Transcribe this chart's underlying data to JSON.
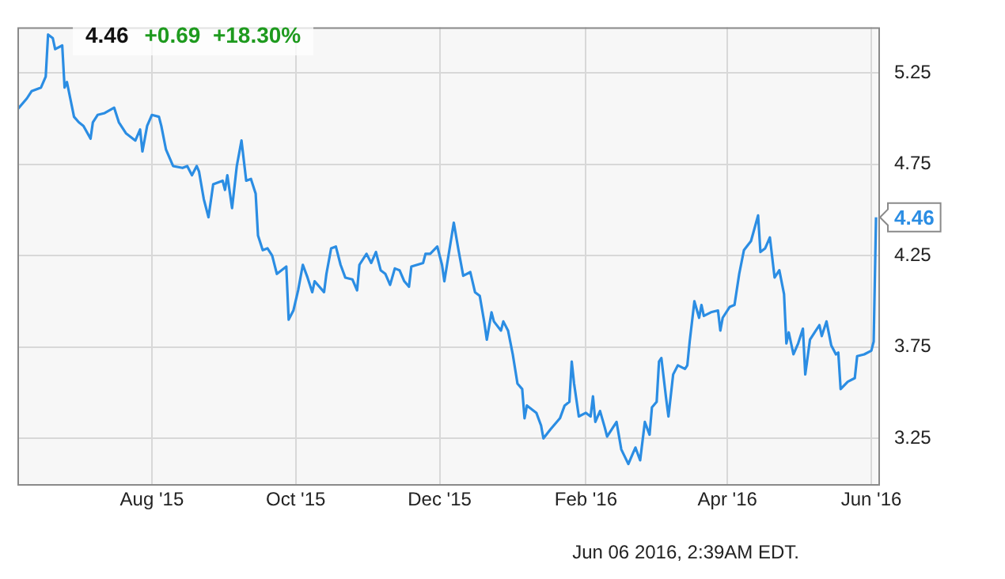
{
  "chart_data": {
    "type": "line",
    "title": "4.46",
    "subtitle": "+0.69  +18.30%",
    "annotations": [
      {
        "text": "4.46",
        "x": "2016-06-03",
        "y": 4.46
      },
      "Jun 06 2016, 2:39AM EDT."
    ],
    "x": [
      "2015-06-05",
      "2015-06-09",
      "2015-06-11",
      "2015-06-15",
      "2015-06-17",
      "2015-06-18",
      "2015-06-20",
      "2015-06-21",
      "2015-06-24",
      "2015-06-25",
      "2015-06-26",
      "2015-06-29",
      "2015-07-01",
      "2015-07-03",
      "2015-07-06",
      "2015-07-07",
      "2015-07-09",
      "2015-07-12",
      "2015-07-16",
      "2015-07-18",
      "2015-07-21",
      "2015-07-25",
      "2015-07-27",
      "2015-07-28",
      "2015-07-30",
      "2015-08-01",
      "2015-08-04",
      "2015-08-05",
      "2015-08-07",
      "2015-08-10",
      "2015-08-14",
      "2015-08-16",
      "2015-08-18",
      "2015-08-20",
      "2015-08-21",
      "2015-08-23",
      "2015-08-25",
      "2015-08-27",
      "2015-08-31",
      "2015-09-01",
      "2015-09-02",
      "2015-09-04",
      "2015-09-06",
      "2015-09-08",
      "2015-09-10",
      "2015-09-12",
      "2015-09-14",
      "2015-09-15",
      "2015-09-17",
      "2015-09-19",
      "2015-09-21",
      "2015-09-23",
      "2015-09-27",
      "2015-09-28",
      "2015-09-30",
      "2015-10-02",
      "2015-10-04",
      "2015-10-06",
      "2015-10-08",
      "2015-10-09",
      "2015-10-13",
      "2015-10-14",
      "2015-10-16",
      "2015-10-18",
      "2015-10-20",
      "2015-10-22",
      "2015-10-25",
      "2015-10-27",
      "2015-10-28",
      "2015-10-31",
      "2015-11-02",
      "2015-11-04",
      "2015-11-06",
      "2015-11-08",
      "2015-11-10",
      "2015-11-12",
      "2015-11-14",
      "2015-11-16",
      "2015-11-18",
      "2015-11-19",
      "2015-11-24",
      "2015-11-25",
      "2015-11-27",
      "2015-11-30",
      "2015-12-02",
      "2015-12-03",
      "2015-12-07",
      "2015-12-09",
      "2015-12-11",
      "2015-12-14",
      "2015-12-16",
      "2015-12-18",
      "2015-12-20",
      "2015-12-21",
      "2015-12-23",
      "2015-12-24",
      "2015-12-27",
      "2015-12-28",
      "2015-12-30",
      "2016-01-01",
      "2016-01-03",
      "2016-01-05",
      "2016-01-06",
      "2016-01-07",
      "2016-01-11",
      "2016-01-13",
      "2016-01-14",
      "2016-01-17",
      "2016-01-21",
      "2016-01-23",
      "2016-01-25",
      "2016-01-26",
      "2016-01-27",
      "2016-01-29",
      "2016-02-01",
      "2016-02-03",
      "2016-02-04",
      "2016-02-05",
      "2016-02-07",
      "2016-02-09",
      "2016-02-10",
      "2016-02-12",
      "2016-02-14",
      "2016-02-16",
      "2016-02-19",
      "2016-02-21",
      "2016-02-22",
      "2016-02-24",
      "2016-02-26",
      "2016-02-28",
      "2016-02-29",
      "2016-03-02",
      "2016-03-03",
      "2016-03-04",
      "2016-03-06",
      "2016-03-07",
      "2016-03-09",
      "2016-03-11",
      "2016-03-14",
      "2016-03-15",
      "2016-03-16",
      "2016-03-18",
      "2016-03-20",
      "2016-03-21",
      "2016-03-22",
      "2016-03-25",
      "2016-03-28",
      "2016-03-29",
      "2016-03-30",
      "2016-04-02",
      "2016-04-04",
      "2016-04-06",
      "2016-04-08",
      "2016-04-11",
      "2016-04-14",
      "2016-04-15",
      "2016-04-17",
      "2016-04-19",
      "2016-04-21",
      "2016-04-23",
      "2016-04-25",
      "2016-04-26",
      "2016-04-27",
      "2016-04-29",
      "2016-05-01",
      "2016-05-03",
      "2016-05-04",
      "2016-05-06",
      "2016-05-08",
      "2016-05-10",
      "2016-05-11",
      "2016-05-13",
      "2016-05-15",
      "2016-05-17",
      "2016-05-18",
      "2016-05-19",
      "2016-05-22",
      "2016-05-25",
      "2016-05-26",
      "2016-05-29",
      "2016-06-01",
      "2016-06-02",
      "2016-06-03"
    ],
    "series": [
      {
        "color": "#2b8de3",
        "values": [
          5.05,
          5.11,
          5.15,
          5.17,
          5.23,
          5.46,
          5.44,
          5.38,
          5.4,
          5.17,
          5.2,
          5.01,
          4.98,
          4.96,
          4.89,
          4.98,
          5.02,
          5.03,
          5.06,
          4.98,
          4.92,
          4.88,
          4.94,
          4.82,
          4.96,
          5.02,
          5.01,
          4.96,
          4.83,
          4.74,
          4.73,
          4.74,
          4.69,
          4.74,
          4.71,
          4.56,
          4.46,
          4.64,
          4.66,
          4.61,
          4.69,
          4.51,
          4.74,
          4.88,
          4.66,
          4.67,
          4.59,
          4.36,
          4.28,
          4.29,
          4.25,
          4.15,
          4.19,
          3.9,
          3.95,
          4.06,
          4.2,
          4.13,
          4.05,
          4.11,
          4.05,
          4.15,
          4.29,
          4.3,
          4.2,
          4.13,
          4.12,
          4.06,
          4.2,
          4.26,
          4.21,
          4.27,
          4.17,
          4.15,
          4.09,
          4.18,
          4.17,
          4.11,
          4.08,
          4.19,
          4.21,
          4.26,
          4.26,
          4.3,
          4.2,
          4.11,
          4.43,
          4.28,
          4.14,
          4.16,
          4.05,
          4.03,
          3.88,
          3.79,
          3.94,
          3.89,
          3.84,
          3.89,
          3.84,
          3.71,
          3.55,
          3.52,
          3.36,
          3.43,
          3.39,
          3.32,
          3.25,
          3.3,
          3.36,
          3.43,
          3.45,
          3.67,
          3.55,
          3.37,
          3.39,
          3.37,
          3.48,
          3.34,
          3.4,
          3.31,
          3.26,
          3.3,
          3.34,
          3.19,
          3.11,
          3.17,
          3.2,
          3.13,
          3.34,
          3.27,
          3.42,
          3.45,
          3.67,
          3.69,
          3.47,
          3.37,
          3.6,
          3.65,
          3.63,
          3.65,
          3.78,
          4.0,
          3.91,
          3.98,
          3.92,
          3.94,
          3.95,
          3.84,
          3.91,
          3.97,
          3.98,
          4.15,
          4.28,
          4.33,
          4.47,
          4.27,
          4.29,
          4.35,
          4.13,
          4.17,
          4.04,
          3.77,
          3.83,
          3.71,
          3.77,
          3.85,
          3.6,
          3.79,
          3.83,
          3.87,
          3.81,
          3.89,
          3.76,
          3.71,
          3.72,
          3.52,
          3.56,
          3.58,
          3.7,
          3.71,
          3.73,
          3.78,
          4.46
        ]
      }
    ],
    "xlim": [
      "2015-06-05",
      "2016-06-04"
    ],
    "xticks": [
      {
        "value": "2015-08-01",
        "label": "Aug '15"
      },
      {
        "value": "2015-10-01",
        "label": "Oct '15"
      },
      {
        "value": "2015-12-01",
        "label": "Dec '15"
      },
      {
        "value": "2016-02-01",
        "label": "Feb '16"
      },
      {
        "value": "2016-04-01",
        "label": "Apr '16"
      },
      {
        "value": "2016-06-01",
        "label": "Jun '16"
      }
    ],
    "ylim": [
      3.0,
      5.5
    ],
    "yticks": [
      3.25,
      3.75,
      4.25,
      4.75,
      5.25
    ],
    "grid": true,
    "marker": "none",
    "line_style": "solid"
  }
}
